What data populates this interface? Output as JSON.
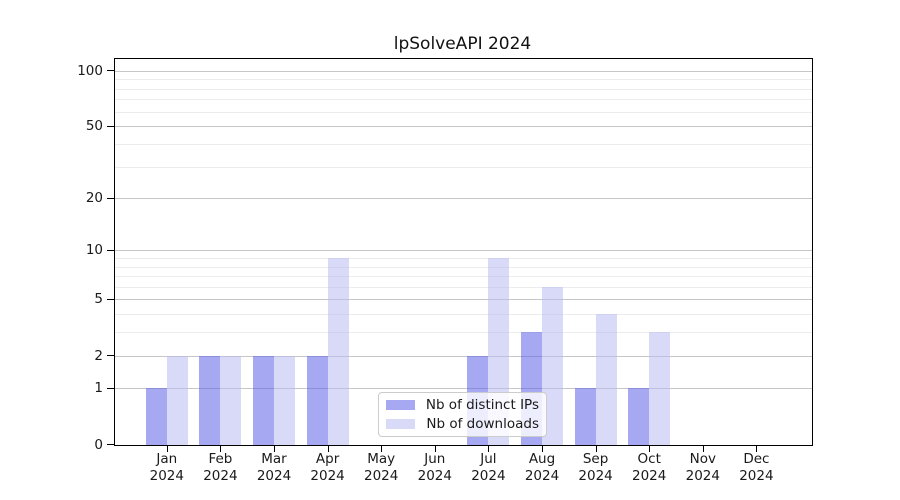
{
  "chart_data": {
    "type": "bar",
    "title": "lpSolveAPI 2024",
    "months": [
      "Jan",
      "Feb",
      "Mar",
      "Apr",
      "May",
      "Jun",
      "Jul",
      "Aug",
      "Sep",
      "Oct",
      "Nov",
      "Dec"
    ],
    "year_label": "2024",
    "series": [
      {
        "name": "Nb of distinct IPs",
        "color": "rgba(93,97,231,0.55)",
        "values": [
          1,
          2,
          2,
          2,
          0,
          0,
          2,
          3,
          1,
          1,
          0,
          0
        ]
      },
      {
        "name": "Nb of downloads",
        "color": "rgba(186,188,242,0.55)",
        "values": [
          2,
          2,
          2,
          9,
          0,
          0,
          9,
          6,
          4,
          3,
          0,
          0
        ]
      }
    ],
    "y_scale": "log1p",
    "y_ticks": [
      0,
      1,
      2,
      5,
      10,
      20,
      50,
      100
    ],
    "y_minor_ticks": [
      3,
      4,
      6,
      7,
      8,
      9,
      30,
      40,
      60,
      70,
      80,
      90
    ],
    "ylim": [
      0,
      117
    ],
    "xlabel": "",
    "ylabel": "",
    "grid": "both",
    "legend_position": "lower center"
  },
  "colors": {
    "bar_dark_final": "#a6a8f2",
    "bar_light_final": "#d9daf8",
    "major_grid": "#c6c6c6",
    "minor_grid": "#ececec",
    "spine": "#000000",
    "text": "#1a1a1a",
    "legend_border": "#cccccc",
    "background": "#ffffff"
  }
}
